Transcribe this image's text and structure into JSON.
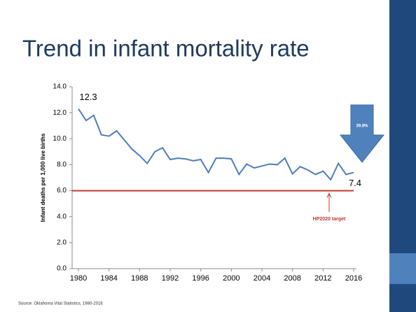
{
  "chart_data": {
    "type": "line",
    "title": "Trend in infant mortality rate",
    "ylabel": "Infant deaths per 1,000 live births",
    "source": "Source: Oklahoma Vital Statistics, 1980-2016",
    "x": [
      1980,
      1981,
      1982,
      1983,
      1984,
      1985,
      1986,
      1987,
      1988,
      1989,
      1990,
      1991,
      1992,
      1993,
      1994,
      1995,
      1996,
      1997,
      1998,
      1999,
      2000,
      2001,
      2002,
      2003,
      2004,
      2005,
      2006,
      2007,
      2008,
      2009,
      2010,
      2011,
      2012,
      2013,
      2014,
      2015,
      2016
    ],
    "series": [
      {
        "color": "#4a7ebb",
        "values": [
          12.3,
          11.4,
          11.8,
          10.3,
          10.2,
          10.6,
          9.9,
          9.2,
          8.7,
          8.1,
          9.0,
          9.3,
          8.4,
          8.5,
          8.45,
          8.3,
          8.4,
          7.4,
          8.5,
          8.5,
          8.45,
          7.25,
          8.05,
          7.75,
          7.9,
          8.05,
          8.0,
          8.5,
          7.3,
          7.85,
          7.6,
          7.25,
          7.5,
          6.85,
          8.1,
          7.25,
          7.4
        ],
        "value_labels": [
          "12.3",
          null,
          null,
          null,
          null,
          null,
          null,
          null,
          null,
          null,
          null,
          null,
          null,
          null,
          null,
          null,
          null,
          null,
          null,
          null,
          null,
          null,
          null,
          null,
          null,
          null,
          null,
          null,
          null,
          null,
          null,
          null,
          null,
          null,
          null,
          null,
          "7.4"
        ]
      }
    ],
    "target": {
      "value": 6.0,
      "label": "HP2020  target",
      "color": "#c0392b"
    },
    "change_label": "39.8%",
    "xlim": [
      1980,
      2016
    ],
    "xticks": [
      1980,
      1984,
      1988,
      1992,
      1996,
      2000,
      2004,
      2008,
      2012,
      2016
    ],
    "ylim": [
      0,
      14
    ],
    "yticks": [
      {
        "value": 0,
        "label": "0.0"
      },
      {
        "value": 2,
        "label": "2.0"
      },
      {
        "value": 4,
        "label": "4.0"
      },
      {
        "value": 6,
        "label": "6.0"
      },
      {
        "value": 8,
        "label": "8.0"
      },
      {
        "value": 10,
        "label": "10.0"
      },
      {
        "value": 12,
        "label": "12.0"
      },
      {
        "value": 14,
        "label": "14.0"
      }
    ]
  }
}
